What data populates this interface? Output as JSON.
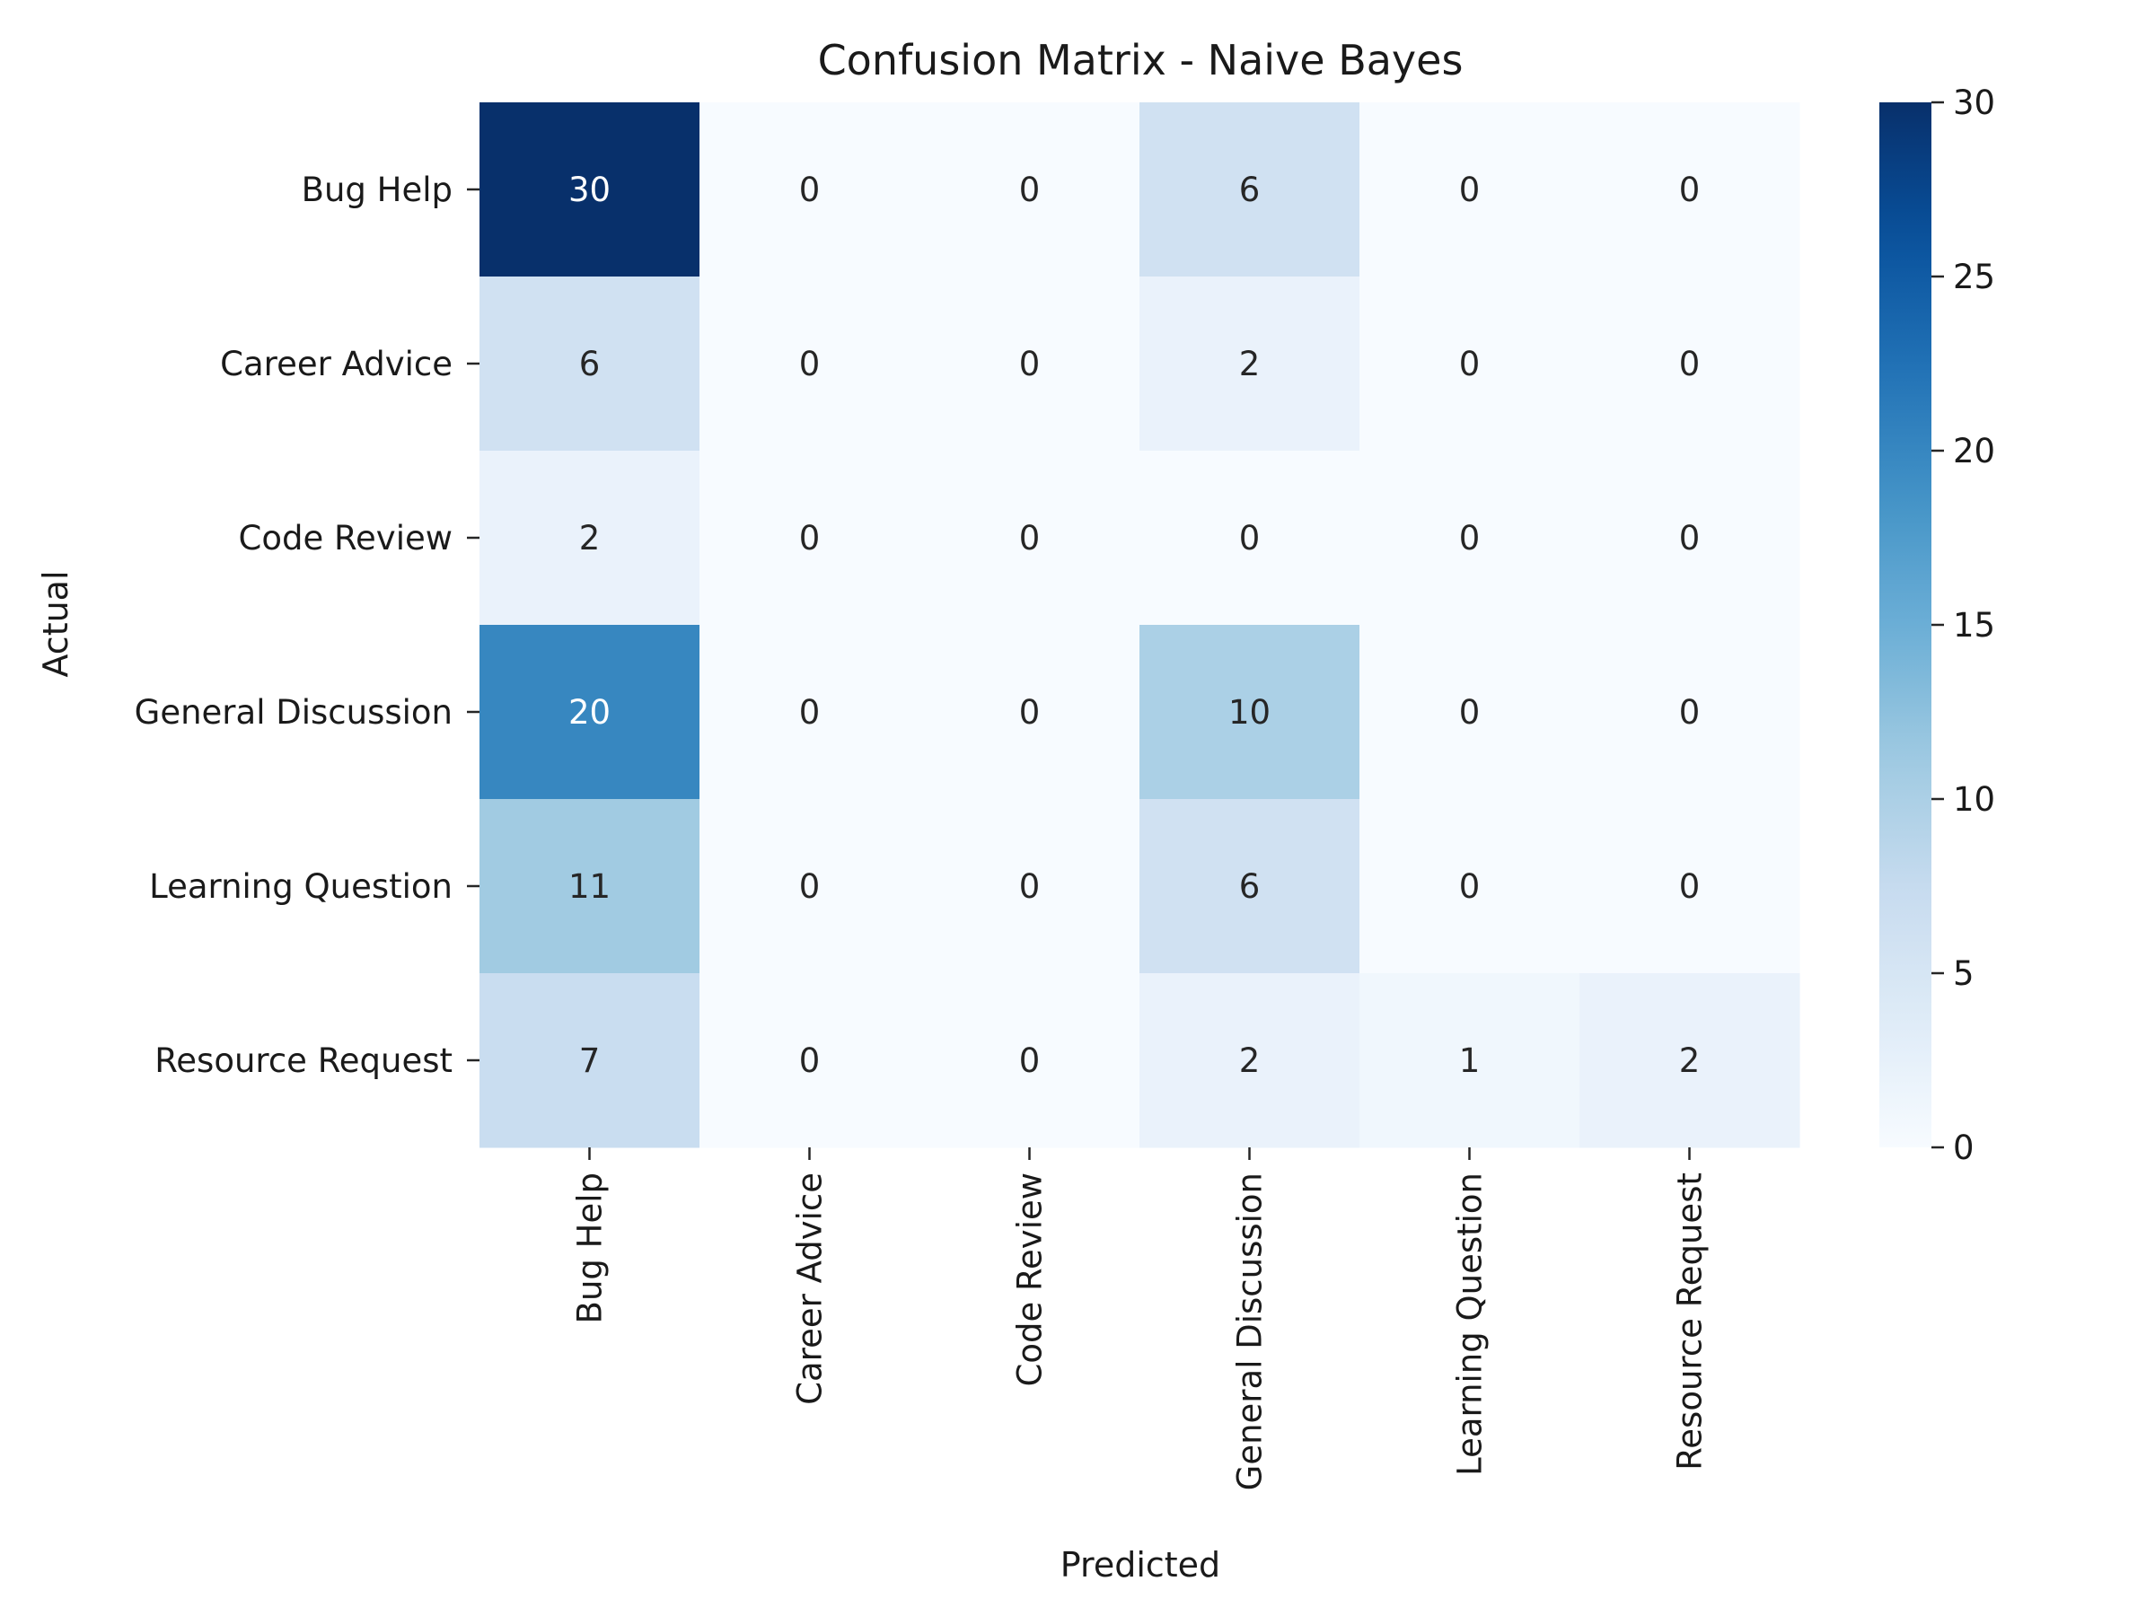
{
  "chart_data": {
    "type": "heatmap",
    "title": "Confusion Matrix - Naive Bayes",
    "xlabel": "Predicted",
    "ylabel": "Actual",
    "x_categories": [
      "Bug Help",
      "Career Advice",
      "Code Review",
      "General Discussion",
      "Learning Question",
      "Resource Request"
    ],
    "y_categories": [
      "Bug Help",
      "Career Advice",
      "Code Review",
      "General Discussion",
      "Learning Question",
      "Resource Request"
    ],
    "values": [
      [
        30,
        0,
        0,
        6,
        0,
        0
      ],
      [
        6,
        0,
        0,
        2,
        0,
        0
      ],
      [
        2,
        0,
        0,
        0,
        0,
        0
      ],
      [
        20,
        0,
        0,
        10,
        0,
        0
      ],
      [
        11,
        0,
        0,
        6,
        0,
        0
      ],
      [
        7,
        0,
        0,
        2,
        1,
        2
      ]
    ],
    "colormap": "Blues",
    "color_range": [
      0,
      30
    ],
    "colorbar_ticks": [
      0,
      5,
      10,
      15,
      20,
      25,
      30
    ],
    "colorbar_placement": "right",
    "annotated": true,
    "grid": false
  }
}
